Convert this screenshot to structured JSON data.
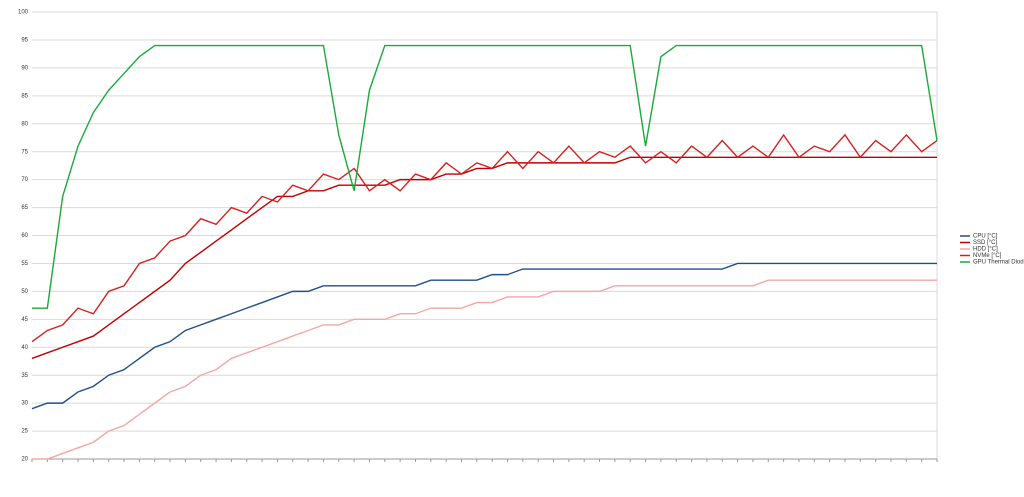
{
  "chart_data": {
    "type": "line",
    "categories": [
      null,
      null,
      null,
      null,
      null,
      null,
      null,
      null,
      null,
      null,
      null,
      null,
      null,
      null,
      null,
      null,
      null,
      null,
      null,
      null,
      null,
      null,
      null,
      null,
      null,
      null,
      null,
      null,
      null,
      null,
      null,
      null,
      null,
      null,
      null,
      null,
      null,
      null,
      null,
      null,
      null,
      null,
      null,
      null,
      null,
      null,
      null,
      null,
      null,
      null,
      null,
      null,
      null,
      null,
      null,
      null,
      null,
      null,
      null,
      null
    ],
    "ylim": [
      20,
      100
    ],
    "yticks": [
      20,
      25,
      30,
      35,
      40,
      45,
      50,
      55,
      60,
      65,
      70,
      75,
      80,
      85,
      90,
      95,
      100
    ],
    "grid": true,
    "legend": "right",
    "series": [
      {
        "name": "CPU [°C]",
        "color": "#1f4e8c",
        "values": [
          29,
          30,
          30,
          32,
          33,
          35,
          36,
          38,
          40,
          41,
          43,
          44,
          45,
          46,
          47,
          48,
          49,
          50,
          50,
          51,
          51,
          51,
          51,
          51,
          51,
          51,
          52,
          52,
          52,
          52,
          53,
          53,
          54,
          54,
          54,
          54,
          54,
          54,
          54,
          54,
          54,
          54,
          54,
          54,
          54,
          54,
          55,
          55,
          55,
          55,
          55,
          55,
          55,
          55,
          55,
          55,
          55,
          55,
          55,
          55
        ]
      },
      {
        "name": "SSD [°C]",
        "color": "#c00000",
        "values": [
          38,
          39,
          40,
          41,
          42,
          44,
          46,
          48,
          50,
          52,
          55,
          57,
          59,
          61,
          63,
          65,
          67,
          67,
          68,
          68,
          69,
          69,
          69,
          69,
          70,
          70,
          70,
          71,
          71,
          72,
          72,
          73,
          73,
          73,
          73,
          73,
          73,
          73,
          73,
          74,
          74,
          74,
          74,
          74,
          74,
          74,
          74,
          74,
          74,
          74,
          74,
          74,
          74,
          74,
          74,
          74,
          74,
          74,
          74,
          74
        ]
      },
      {
        "name": "HDD [°C]",
        "color": "#f4a6a6",
        "values": [
          20,
          20,
          21,
          22,
          23,
          25,
          26,
          28,
          30,
          32,
          33,
          35,
          36,
          38,
          39,
          40,
          41,
          42,
          43,
          44,
          44,
          45,
          45,
          45,
          46,
          46,
          47,
          47,
          47,
          48,
          48,
          49,
          49,
          49,
          50,
          50,
          50,
          50,
          51,
          51,
          51,
          51,
          51,
          51,
          51,
          51,
          51,
          51,
          52,
          52,
          52,
          52,
          52,
          52,
          52,
          52,
          52,
          52,
          52,
          52
        ]
      },
      {
        "name": "NVMe [°C]",
        "color": "#d62020",
        "values": [
          41,
          43,
          44,
          47,
          46,
          50,
          51,
          55,
          56,
          59,
          60,
          63,
          62,
          65,
          64,
          67,
          66,
          69,
          68,
          71,
          70,
          72,
          68,
          70,
          68,
          71,
          70,
          73,
          71,
          73,
          72,
          75,
          72,
          75,
          73,
          76,
          73,
          75,
          74,
          76,
          73,
          75,
          73,
          76,
          74,
          77,
          74,
          76,
          74,
          78,
          74,
          76,
          75,
          78,
          74,
          77,
          75,
          78,
          75,
          77
        ]
      },
      {
        "name": "GPU Thermal Diode [°C]",
        "color": "#1aaa3a",
        "values": [
          47,
          47,
          67,
          76,
          82,
          86,
          89,
          92,
          94,
          94,
          94,
          94,
          94,
          94,
          94,
          94,
          94,
          94,
          94,
          94,
          78,
          68,
          86,
          94,
          94,
          94,
          94,
          94,
          94,
          94,
          94,
          94,
          94,
          94,
          94,
          94,
          94,
          94,
          94,
          94,
          76,
          92,
          94,
          94,
          94,
          94,
          94,
          94,
          94,
          94,
          94,
          94,
          94,
          94,
          94,
          94,
          94,
          94,
          94,
          77
        ]
      }
    ]
  }
}
